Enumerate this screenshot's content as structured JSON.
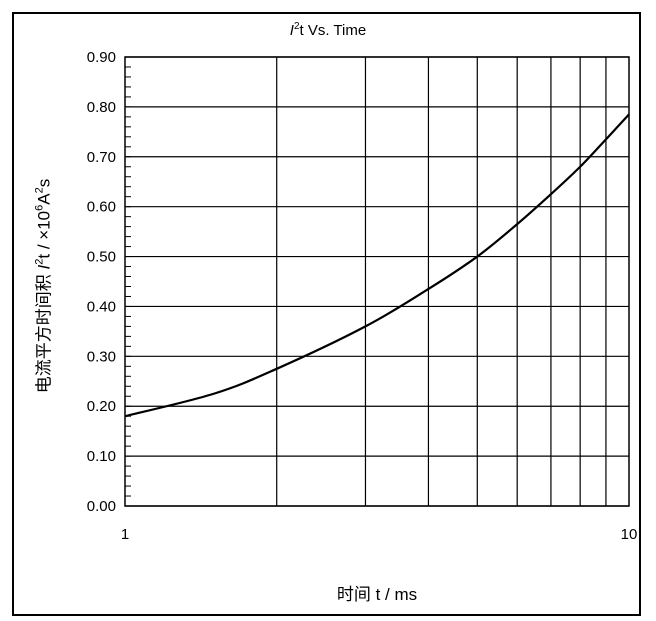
{
  "chart_data": {
    "type": "line",
    "title": {
      "symbol": "I",
      "sup": "2",
      "rest": "t Vs. Time"
    },
    "xlabel": "时间  t / ms",
    "ylabel": {
      "prefix": "电流平方时间积  ",
      "symbol": "I",
      "sup1": "2",
      "mid": "t / ×10",
      "sup2": "6",
      "mid2": "A",
      "sup3": "2",
      "suffix": "s"
    },
    "x_scale": "log",
    "xlim": [
      1,
      10
    ],
    "ylim": [
      0.0,
      0.9
    ],
    "x_ticks": [
      "1",
      "10"
    ],
    "y_ticks": [
      "0.00",
      "0.10",
      "0.20",
      "0.30",
      "0.40",
      "0.50",
      "0.60",
      "0.70",
      "0.80",
      "0.90"
    ],
    "grid": true,
    "series": [
      {
        "x": [
          1,
          1.5,
          2,
          3,
          4,
          5,
          6,
          7,
          8,
          9,
          10
        ],
        "y": [
          0.18,
          0.225,
          0.275,
          0.36,
          0.435,
          0.5,
          0.565,
          0.625,
          0.68,
          0.735,
          0.785
        ]
      }
    ]
  }
}
